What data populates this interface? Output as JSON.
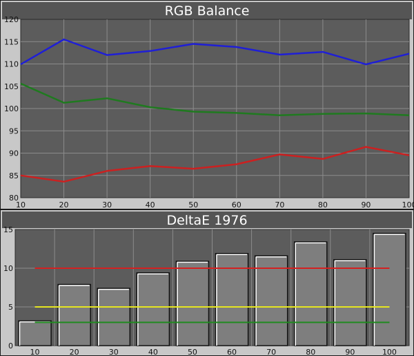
{
  "chart_data": [
    {
      "type": "line",
      "title": "RGB Balance",
      "xlabel": "",
      "ylabel": "",
      "x": [
        10,
        20,
        30,
        40,
        50,
        60,
        70,
        80,
        90,
        100
      ],
      "xlim": [
        10,
        100
      ],
      "ylim": [
        80,
        120
      ],
      "yticks": [
        80,
        85,
        90,
        95,
        100,
        105,
        110,
        115,
        120
      ],
      "grid": true,
      "series": [
        {
          "color": "#1f1fd6",
          "values": [
            109.9,
            115.5,
            112.0,
            112.9,
            114.5,
            113.8,
            112.1,
            112.7,
            109.9,
            112.3
          ]
        },
        {
          "color": "#1f7a1f",
          "values": [
            105.6,
            101.3,
            102.3,
            100.3,
            99.3,
            99.0,
            98.5,
            98.8,
            98.9,
            98.5
          ]
        },
        {
          "color": "#cc2020",
          "values": [
            85.0,
            83.6,
            86.0,
            87.1,
            86.5,
            87.5,
            89.7,
            88.7,
            91.4,
            89.5
          ]
        }
      ]
    },
    {
      "type": "bar",
      "title": "DeltaE 1976",
      "xlabel": "",
      "ylabel": "",
      "categories": [
        "10",
        "20",
        "30",
        "40",
        "50",
        "60",
        "70",
        "80",
        "90",
        "100"
      ],
      "values": [
        3.2,
        7.9,
        7.4,
        9.4,
        10.9,
        11.9,
        11.6,
        13.4,
        11.1,
        14.5
      ],
      "ylim": [
        0,
        15
      ],
      "yticks": [
        0,
        5,
        10,
        15
      ],
      "grid": true,
      "reference_lines": [
        {
          "value": 10,
          "color": "#d42020"
        },
        {
          "value": 5,
          "color": "#e6e620"
        },
        {
          "value": 3,
          "color": "#1f8a1f"
        }
      ]
    }
  ]
}
